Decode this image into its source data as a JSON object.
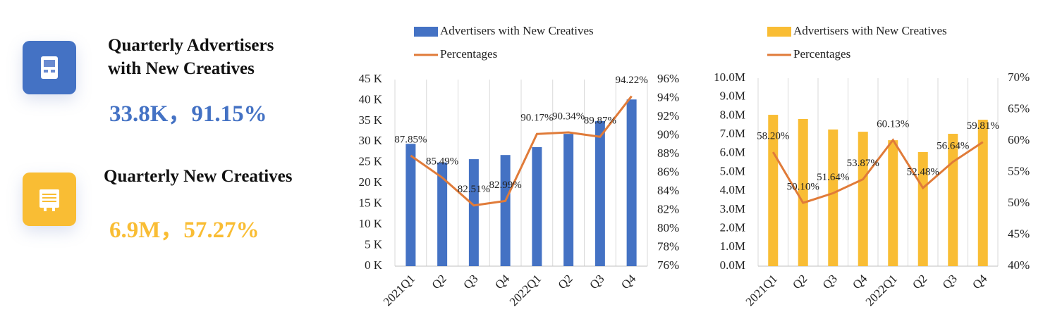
{
  "cards": [
    {
      "title": "Quarterly Advertisers with New Creatives",
      "value": "33.8K，91.15%",
      "color": "#4472c4"
    },
    {
      "title": "Quarterly New Creatives",
      "value": "6.9M，57.27%",
      "color": "#f9bd34"
    }
  ],
  "chart_data": [
    {
      "type": "bar",
      "categories": [
        "2021Q1",
        "Q2",
        "Q3",
        "Q4",
        "2022Q1",
        "Q2",
        "Q3",
        "Q4"
      ],
      "series": [
        {
          "name": "Advertisers with New Creatives",
          "color": "#4472c4",
          "values": [
            29500,
            25000,
            25800,
            26800,
            28700,
            31900,
            35000,
            40200
          ]
        },
        {
          "name": "Percentages",
          "color": "#e07b39",
          "type": "line",
          "axis": "y2",
          "values": [
            87.85,
            85.49,
            82.51,
            82.99,
            90.17,
            90.34,
            89.87,
            94.22
          ],
          "value_labels": [
            "87.85%",
            "85.49%",
            "82.51%",
            "82.99%",
            "90.17%",
            "90.34%",
            "89.87%",
            "94.22%"
          ]
        }
      ],
      "ylim": [
        0,
        45000
      ],
      "yticks": [
        {
          "value": 0,
          "label": "0 K"
        },
        {
          "value": 5000,
          "label": "5 K"
        },
        {
          "value": 10000,
          "label": "10 K"
        },
        {
          "value": 15000,
          "label": "15 K"
        },
        {
          "value": 20000,
          "label": "20 K"
        },
        {
          "value": 25000,
          "label": "25 K"
        },
        {
          "value": 30000,
          "label": "30 K"
        },
        {
          "value": 35000,
          "label": "35 K"
        },
        {
          "value": 40000,
          "label": "40 K"
        },
        {
          "value": 45000,
          "label": "45 K"
        }
      ],
      "y2lim": [
        76,
        96
      ],
      "y2ticks": [
        {
          "value": 76,
          "label": "76%"
        },
        {
          "value": 78,
          "label": "78%"
        },
        {
          "value": 80,
          "label": "80%"
        },
        {
          "value": 82,
          "label": "82%"
        },
        {
          "value": 84,
          "label": "84%"
        },
        {
          "value": 86,
          "label": "86%"
        },
        {
          "value": 88,
          "label": "88%"
        },
        {
          "value": 90,
          "label": "90%"
        },
        {
          "value": 92,
          "label": "92%"
        },
        {
          "value": 94,
          "label": "94%"
        },
        {
          "value": 96,
          "label": "96%"
        }
      ],
      "grid": true,
      "legend": "top"
    },
    {
      "type": "bar",
      "categories": [
        "2021Q1",
        "Q2",
        "Q3",
        "Q4",
        "2022Q1",
        "Q2",
        "Q3",
        "Q4"
      ],
      "series": [
        {
          "name": "Advertisers with New Creatives",
          "color": "#f9bd34",
          "values": [
            8050000,
            7830000,
            7270000,
            7150000,
            6700000,
            6070000,
            7040000,
            7790000
          ]
        },
        {
          "name": "Percentages",
          "color": "#e07b39",
          "type": "line",
          "axis": "y2",
          "values": [
            58.2,
            50.1,
            51.64,
            53.87,
            60.13,
            52.48,
            56.64,
            59.81
          ],
          "value_labels": [
            "58.20%",
            "50.10%",
            "51.64%",
            "53.87%",
            "60.13%",
            "52.48%",
            "56.64%",
            "59.81%"
          ]
        }
      ],
      "ylim": [
        0,
        10000000
      ],
      "yticks": [
        {
          "value": 0,
          "label": "0.0M"
        },
        {
          "value": 1000000,
          "label": "1.0M"
        },
        {
          "value": 2000000,
          "label": "2.0M"
        },
        {
          "value": 3000000,
          "label": "3.0M"
        },
        {
          "value": 4000000,
          "label": "4.0M"
        },
        {
          "value": 5000000,
          "label": "5.0M"
        },
        {
          "value": 6000000,
          "label": "6.0M"
        },
        {
          "value": 7000000,
          "label": "7.0M"
        },
        {
          "value": 8000000,
          "label": "8.0M"
        },
        {
          "value": 9000000,
          "label": "9.0M"
        },
        {
          "value": 10000000,
          "label": "10.0M"
        }
      ],
      "y2lim": [
        40,
        70
      ],
      "y2ticks": [
        {
          "value": 40,
          "label": "40%"
        },
        {
          "value": 45,
          "label": "45%"
        },
        {
          "value": 50,
          "label": "50%"
        },
        {
          "value": 55,
          "label": "55%"
        },
        {
          "value": 60,
          "label": "60%"
        },
        {
          "value": 65,
          "label": "65%"
        },
        {
          "value": 70,
          "label": "70%"
        }
      ],
      "grid": true,
      "legend": "top"
    }
  ]
}
